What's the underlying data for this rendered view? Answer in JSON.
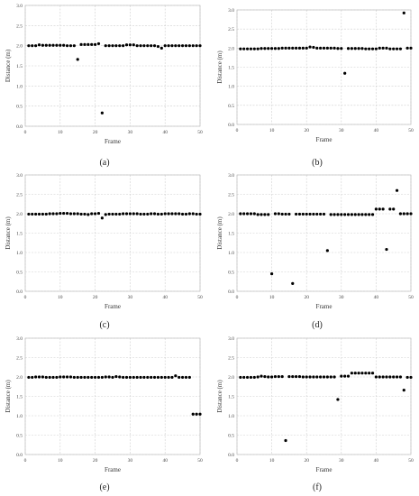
{
  "chart_data": [
    {
      "type": "scatter",
      "panel_label": "(a)",
      "xlabel": "Frame",
      "ylabel": "Distance (m)",
      "xlim": [
        0,
        50
      ],
      "ylim": [
        0,
        3.0
      ],
      "xticks": [
        "0",
        "10",
        "20",
        "30",
        "40",
        "50"
      ],
      "yticks": [
        "0.0",
        "0.5",
        "1.0",
        "1.5",
        "2.0",
        "2.5",
        "3.0"
      ],
      "grid": true,
      "x": [
        1,
        2,
        3,
        4,
        5,
        6,
        7,
        8,
        9,
        10,
        11,
        12,
        13,
        14,
        15,
        16,
        17,
        18,
        19,
        20,
        21,
        22,
        23,
        24,
        25,
        26,
        27,
        28,
        29,
        30,
        31,
        32,
        33,
        34,
        35,
        36,
        37,
        38,
        39,
        40,
        41,
        42,
        43,
        44,
        45,
        46,
        47,
        48,
        49,
        50
      ],
      "y": [
        2.0,
        2.0,
        2.0,
        2.02,
        2.01,
        2.01,
        2.01,
        2.01,
        2.01,
        2.01,
        2.01,
        2.0,
        2.0,
        2.0,
        1.66,
        2.03,
        2.03,
        2.03,
        2.03,
        2.03,
        2.05,
        0.33,
        2.0,
        2.0,
        2.0,
        2.0,
        2.0,
        2.0,
        2.02,
        2.02,
        2.02,
        2.0,
        2.0,
        2.0,
        2.0,
        2.0,
        2.0,
        1.98,
        1.94,
        2.0,
        2.0,
        2.0,
        2.0,
        2.0,
        2.0,
        2.0,
        2.0,
        2.0,
        2.0,
        2.0
      ]
    },
    {
      "type": "scatter",
      "panel_label": "(b)",
      "xlabel": "Frame",
      "ylabel": "Distance (m)",
      "xlim": [
        0,
        50
      ],
      "ylim": [
        0,
        3.0
      ],
      "xticks": [
        "0",
        "10",
        "20",
        "30",
        "40",
        "50"
      ],
      "yticks": [
        "0.0",
        "0.5",
        "1.0",
        "1.5",
        "2.0",
        "2.5",
        "3.0"
      ],
      "grid": true,
      "x": [
        1,
        2,
        3,
        4,
        5,
        6,
        7,
        8,
        9,
        10,
        11,
        12,
        13,
        14,
        15,
        16,
        17,
        18,
        19,
        20,
        21,
        22,
        23,
        24,
        25,
        26,
        27,
        28,
        29,
        30,
        31,
        32,
        33,
        34,
        35,
        36,
        37,
        38,
        39,
        40,
        41,
        42,
        43,
        44,
        45,
        46,
        47,
        48,
        49,
        50
      ],
      "y": [
        1.98,
        1.98,
        1.98,
        1.98,
        1.98,
        1.98,
        1.99,
        1.99,
        1.99,
        1.99,
        1.99,
        1.99,
        2.0,
        2.0,
        2.0,
        2.0,
        2.0,
        2.0,
        2.0,
        2.0,
        2.03,
        2.02,
        2.0,
        2.0,
        2.0,
        2.0,
        2.0,
        2.0,
        1.99,
        1.99,
        1.34,
        1.99,
        1.99,
        1.99,
        1.99,
        1.99,
        1.98,
        1.98,
        1.98,
        1.98,
        2.0,
        2.0,
        2.0,
        1.98,
        1.98,
        1.98,
        1.98,
        2.92,
        2.0,
        2.0
      ]
    },
    {
      "type": "scatter",
      "panel_label": "(c)",
      "xlabel": "Frame",
      "ylabel": "Distance (m)",
      "xlim": [
        0,
        50
      ],
      "ylim": [
        0,
        3.0
      ],
      "xticks": [
        "0",
        "10",
        "20",
        "30",
        "40",
        "50"
      ],
      "yticks": [
        "0.0",
        "0.5",
        "1.0",
        "1.5",
        "2.0",
        "2.5",
        "3.0"
      ],
      "grid": true,
      "x": [
        1,
        2,
        3,
        4,
        5,
        6,
        7,
        8,
        9,
        10,
        11,
        12,
        13,
        14,
        15,
        16,
        17,
        18,
        19,
        20,
        21,
        22,
        23,
        24,
        25,
        26,
        27,
        28,
        29,
        30,
        31,
        32,
        33,
        34,
        35,
        36,
        37,
        38,
        39,
        40,
        41,
        42,
        43,
        44,
        45,
        46,
        47,
        48,
        49,
        50
      ],
      "y": [
        1.99,
        1.99,
        1.99,
        1.99,
        1.99,
        1.99,
        2.0,
        2.0,
        2.0,
        2.01,
        2.01,
        2.01,
        2.0,
        2.0,
        2.0,
        1.99,
        1.99,
        1.98,
        2.0,
        2.0,
        2.01,
        1.89,
        1.98,
        1.99,
        1.99,
        1.99,
        1.99,
        2.0,
        2.0,
        2.0,
        2.0,
        2.0,
        1.99,
        1.99,
        1.99,
        2.0,
        2.0,
        1.99,
        1.99,
        2.0,
        2.0,
        2.0,
        2.0,
        2.0,
        1.99,
        1.99,
        2.0,
        2.0,
        1.99,
        1.99
      ]
    },
    {
      "type": "scatter",
      "panel_label": "(d)",
      "xlabel": "Frame",
      "ylabel": "Distance (m)",
      "xlim": [
        0,
        50
      ],
      "ylim": [
        0,
        3.0
      ],
      "xticks": [
        "0",
        "10",
        "20",
        "30",
        "40",
        "50"
      ],
      "yticks": [
        "0.0",
        "0.5",
        "1.0",
        "1.5",
        "2.0",
        "2.5",
        "3.0"
      ],
      "grid": true,
      "x": [
        1,
        2,
        3,
        4,
        5,
        6,
        7,
        8,
        9,
        10,
        11,
        12,
        13,
        14,
        15,
        16,
        17,
        18,
        19,
        20,
        21,
        22,
        23,
        24,
        25,
        26,
        27,
        28,
        29,
        30,
        31,
        32,
        33,
        34,
        35,
        36,
        37,
        38,
        39,
        40,
        41,
        42,
        43,
        44,
        45,
        46,
        47,
        48,
        49,
        50
      ],
      "y": [
        2.0,
        2.0,
        2.0,
        2.0,
        2.0,
        1.98,
        1.98,
        1.98,
        1.98,
        0.45,
        2.0,
        2.0,
        1.99,
        1.99,
        1.99,
        0.2,
        1.99,
        1.99,
        1.99,
        1.99,
        1.99,
        1.99,
        1.99,
        1.99,
        1.99,
        1.05,
        1.98,
        1.98,
        1.98,
        1.98,
        1.98,
        1.98,
        1.98,
        1.98,
        1.98,
        1.98,
        1.98,
        1.98,
        1.98,
        2.12,
        2.12,
        2.12,
        1.08,
        2.12,
        2.12,
        2.6,
        2.0,
        2.0,
        2.0,
        2.0
      ]
    },
    {
      "type": "scatter",
      "panel_label": "(e)",
      "xlabel": "Frame",
      "ylabel": "Distance (m)",
      "xlim": [
        0,
        50
      ],
      "ylim": [
        0,
        3.0
      ],
      "xticks": [
        "0",
        "10",
        "20",
        "30",
        "40",
        "50"
      ],
      "yticks": [
        "0.0",
        "0.5",
        "1.0",
        "1.5",
        "2.0",
        "2.5",
        "3.0"
      ],
      "grid": true,
      "x": [
        1,
        2,
        3,
        4,
        5,
        6,
        7,
        8,
        9,
        10,
        11,
        12,
        13,
        14,
        15,
        16,
        17,
        18,
        19,
        20,
        21,
        22,
        23,
        24,
        25,
        26,
        27,
        28,
        29,
        30,
        31,
        32,
        33,
        34,
        35,
        36,
        37,
        38,
        39,
        40,
        41,
        42,
        43,
        44,
        45,
        46,
        47,
        48,
        49,
        50
      ],
      "y": [
        1.99,
        1.99,
        2.0,
        2.0,
        2.0,
        1.99,
        1.99,
        1.99,
        1.99,
        2.0,
        2.0,
        2.0,
        2.0,
        1.99,
        1.99,
        1.99,
        1.99,
        1.99,
        1.99,
        1.99,
        1.99,
        1.99,
        2.0,
        2.0,
        1.99,
        2.01,
        2.0,
        1.99,
        1.99,
        1.99,
        1.99,
        1.99,
        1.99,
        1.99,
        1.99,
        1.99,
        1.99,
        1.99,
        1.99,
        1.99,
        1.99,
        1.99,
        2.03,
        1.99,
        1.99,
        1.99,
        1.99,
        1.04,
        1.04,
        1.04
      ]
    },
    {
      "type": "scatter",
      "panel_label": "(f)",
      "xlabel": "Frame",
      "ylabel": "Distance (m)",
      "xlim": [
        0,
        50
      ],
      "ylim": [
        0,
        3.0
      ],
      "xticks": [
        "0",
        "10",
        "20",
        "30",
        "40",
        "50"
      ],
      "yticks": [
        "0.0",
        "0.5",
        "1.0",
        "1.5",
        "2.0",
        "2.5",
        "3.0"
      ],
      "grid": true,
      "x": [
        1,
        2,
        3,
        4,
        5,
        6,
        7,
        8,
        9,
        10,
        11,
        12,
        13,
        14,
        15,
        16,
        17,
        18,
        19,
        20,
        21,
        22,
        23,
        24,
        25,
        26,
        27,
        28,
        29,
        30,
        31,
        32,
        33,
        34,
        35,
        36,
        37,
        38,
        39,
        40,
        41,
        42,
        43,
        44,
        45,
        46,
        47,
        48,
        49,
        50
      ],
      "y": [
        1.99,
        1.99,
        1.99,
        1.99,
        1.99,
        2.0,
        2.02,
        2.01,
        2.0,
        2.0,
        2.01,
        2.01,
        2.01,
        0.36,
        2.01,
        2.01,
        2.01,
        2.01,
        2.0,
        2.0,
        2.0,
        2.0,
        2.0,
        2.0,
        2.0,
        2.0,
        2.0,
        2.0,
        1.42,
        2.02,
        2.02,
        2.02,
        2.1,
        2.1,
        2.1,
        2.1,
        2.1,
        2.1,
        2.1,
        2.0,
        2.0,
        2.0,
        2.0,
        2.0,
        2.0,
        2.0,
        2.0,
        1.66,
        1.99,
        1.99
      ]
    }
  ]
}
